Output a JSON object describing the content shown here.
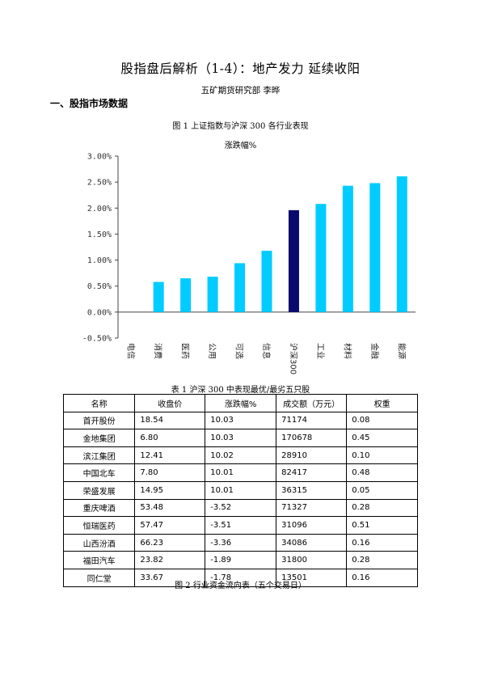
{
  "header": {
    "title": "股指盘后解析（1-4）：地产发力 延续收阳",
    "author": "五矿期货研究部    李晔",
    "section": "一、股指市场数据"
  },
  "figure1": {
    "caption": "图 1    上证指数与沪深 300 各行业表现",
    "subtitle": "涨跌幅%"
  },
  "chart_data": {
    "type": "bar",
    "title": "涨跌幅%",
    "categories": [
      "电信",
      "消费",
      "医药",
      "公用",
      "可选",
      "信息",
      "沪深300",
      "工业",
      "材料",
      "金融",
      "能源"
    ],
    "values": [
      0.0,
      0.58,
      0.65,
      0.68,
      0.94,
      1.18,
      1.96,
      2.08,
      2.43,
      2.48,
      2.61
    ],
    "yticks": [
      "3.00%",
      "2.50%",
      "2.00%",
      "1.50%",
      "1.00%",
      "0.50%",
      "0.00%",
      "-0.50%"
    ],
    "ylim": [
      -0.5,
      3.0
    ],
    "colors": {
      "default": "#00ccff",
      "highlight": "#0a0a6e"
    },
    "highlight": "沪深300",
    "grid": false
  },
  "table1": {
    "caption": "表 1    沪深 300 中表现最优/最劣五只股",
    "headers": [
      "名称",
      "收盘价",
      "涨跌幅%",
      "成交额（万元）",
      "权重"
    ],
    "rows": [
      [
        "首开股份",
        "18.54",
        "10.03",
        "71174",
        "0.08"
      ],
      [
        "金地集团",
        "6.80",
        "10.03",
        "170678",
        "0.45"
      ],
      [
        "滨江集团",
        "12.41",
        "10.02",
        "28910",
        "0.10"
      ],
      [
        "中国北车",
        "7.80",
        "10.01",
        "82417",
        "0.48"
      ],
      [
        "荣盛发展",
        "14.95",
        "10.01",
        "36315",
        "0.05"
      ],
      [
        "重庆啤酒",
        "53.48",
        "-3.52",
        "71327",
        "0.28"
      ],
      [
        "恒瑞医药",
        "57.47",
        "-3.51",
        "31096",
        "0.51"
      ],
      [
        "山西汾酒",
        "66.23",
        "-3.36",
        "34086",
        "0.16"
      ],
      [
        "福田汽车",
        "23.82",
        "-1.89",
        "31800",
        "0.28"
      ],
      [
        "同仁堂",
        "33.67",
        "-1.78",
        "13501",
        "0.16"
      ]
    ]
  },
  "figure2": {
    "caption": "图 2    行业资金流向表（五个交易日）"
  }
}
